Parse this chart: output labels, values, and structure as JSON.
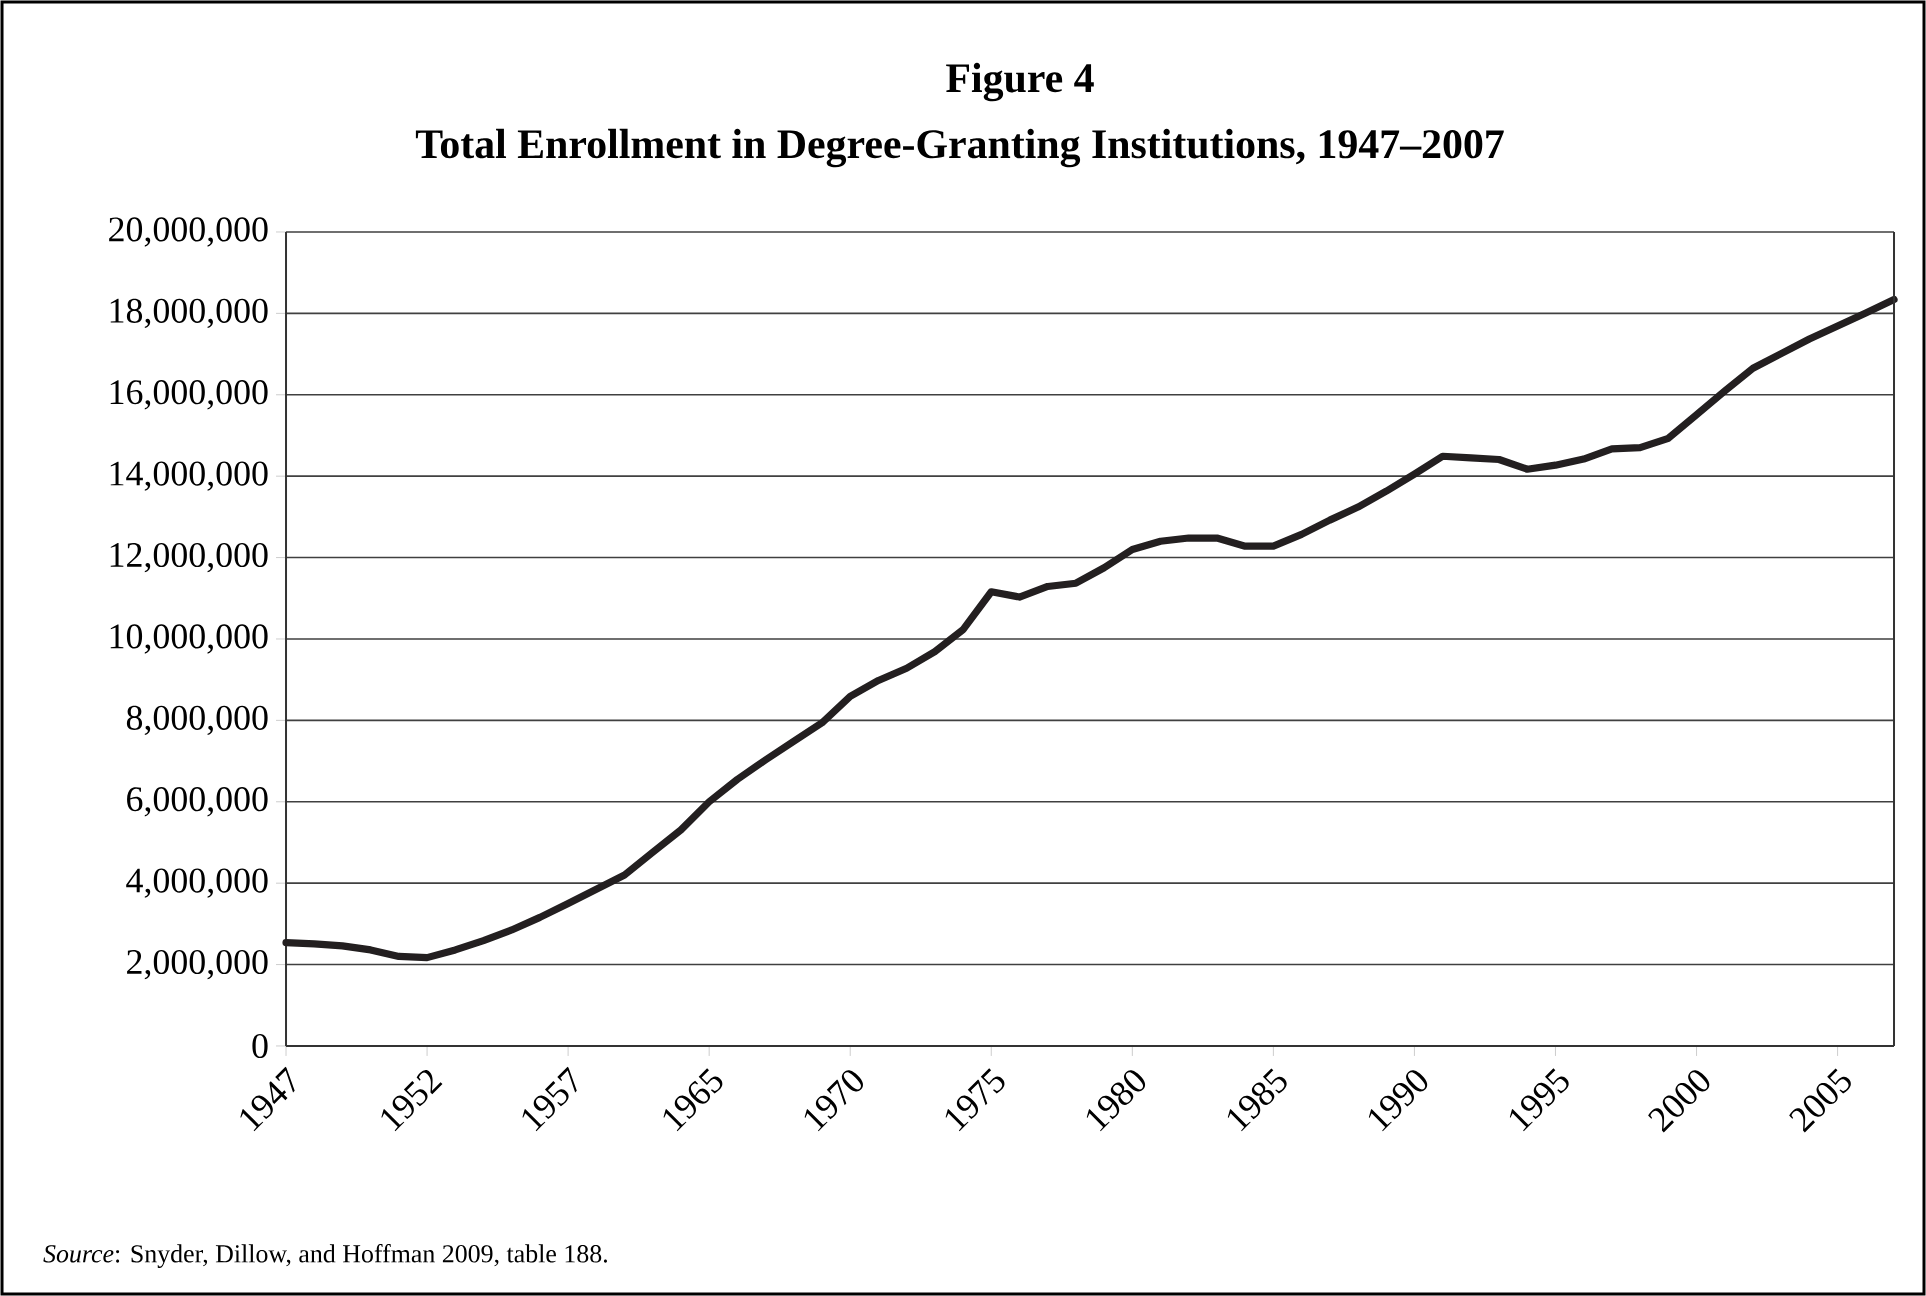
{
  "chart_data": {
    "type": "line",
    "title": "Figure 4",
    "subtitle": "Total Enrollment in Degree-Granting Institutions, 1947–2007",
    "categories": [
      "1947",
      null,
      null,
      null,
      null,
      "1952",
      null,
      null,
      null,
      null,
      "1957",
      null,
      null,
      null,
      null,
      "1965",
      null,
      null,
      null,
      null,
      "1970",
      null,
      null,
      null,
      null,
      "1975",
      null,
      null,
      null,
      null,
      "1980",
      null,
      null,
      null,
      null,
      "1985",
      null,
      null,
      null,
      null,
      "1990",
      null,
      null,
      null,
      null,
      "1995",
      null,
      null,
      null,
      null,
      "2000",
      null,
      null,
      null,
      null,
      "2005",
      null,
      null
    ],
    "series": [
      {
        "color": "#231f20",
        "values": [
          2540000,
          2510000,
          2460000,
          2360000,
          2200000,
          2170000,
          2360000,
          2590000,
          2850000,
          3160000,
          3500000,
          3850000,
          4200000,
          4760000,
          5310000,
          6000000,
          6550000,
          7030000,
          7490000,
          7940000,
          8590000,
          8980000,
          9280000,
          9690000,
          10230000,
          11160000,
          11030000,
          11290000,
          11370000,
          11750000,
          12200000,
          12400000,
          12480000,
          12480000,
          12280000,
          12280000,
          12570000,
          12920000,
          13240000,
          13630000,
          14050000,
          14490000,
          14450000,
          14410000,
          14170000,
          14270000,
          14420000,
          14670000,
          14700000,
          14930000,
          15510000,
          16090000,
          16650000,
          17010000,
          17370000,
          17690000,
          18010000,
          18340000
        ]
      }
    ],
    "ylim": [
      0,
      20000000
    ],
    "yticks": [
      {
        "value": 0,
        "label": "0"
      },
      {
        "value": 2000000,
        "label": "2,000,000"
      },
      {
        "value": 4000000,
        "label": "4,000,000"
      },
      {
        "value": 6000000,
        "label": "6,000,000"
      },
      {
        "value": 8000000,
        "label": "8,000,000"
      },
      {
        "value": 10000000,
        "label": "10,000,000"
      },
      {
        "value": 12000000,
        "label": "12,000,000"
      },
      {
        "value": 14000000,
        "label": "14,000,000"
      },
      {
        "value": 16000000,
        "label": "16,000,000"
      },
      {
        "value": 18000000,
        "label": "18,000,000"
      },
      {
        "value": 20000000,
        "label": "20,000,000"
      }
    ],
    "grid": "y",
    "marker": "none",
    "line_style": "solid",
    "annotations": [
      "*Source*: Snyder, Dillow, and Hoffman 2009, table 188."
    ]
  }
}
